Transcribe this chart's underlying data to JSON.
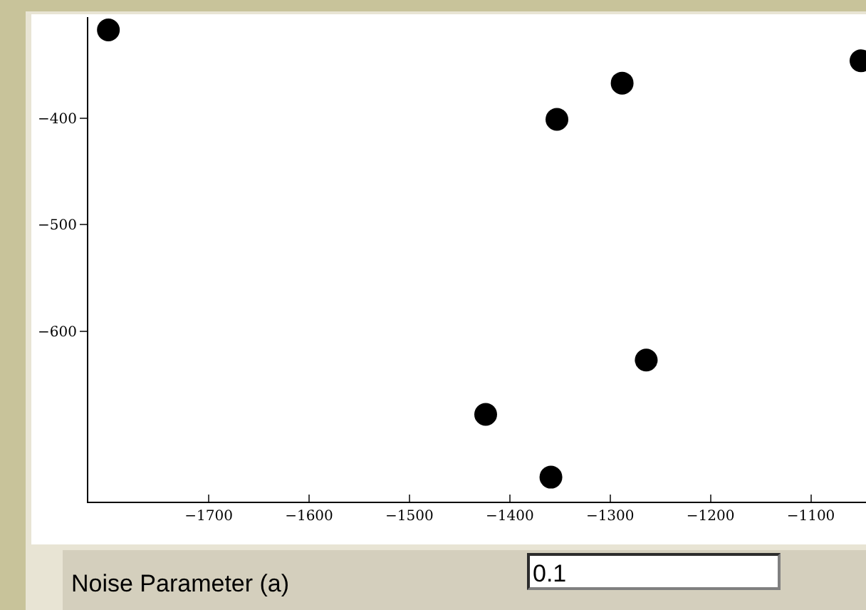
{
  "chart_data": {
    "type": "scatter",
    "x": [
      -1800,
      -1353,
      -1288,
      -1050,
      -1424,
      -1264,
      -1359
    ],
    "values": [
      -317,
      -401,
      -367,
      -346,
      -678,
      -627,
      -737
    ],
    "color": "#000000",
    "marker": "circle",
    "xlim": [
      -1820,
      -1045
    ],
    "ylim": [
      -760,
      -305
    ],
    "xticks": [
      -1700,
      -1600,
      -1500,
      -1400,
      -1300,
      -1200,
      -1100
    ],
    "yticks": [
      -400,
      -500,
      -600
    ],
    "grid": false,
    "annotations": [
      "Noise Parameter (a)",
      "0.1"
    ]
  }
}
